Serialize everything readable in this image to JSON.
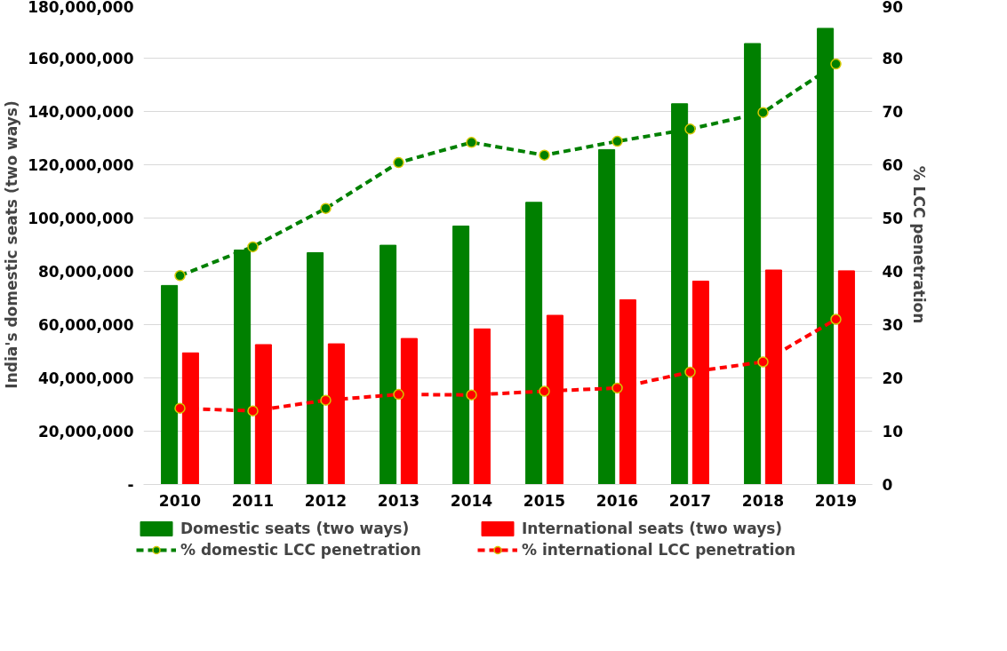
{
  "chart_data": {
    "type": "bar",
    "ylabel": "India's domestic seats (two ways)",
    "y2label": "% LCC penetration",
    "categories": [
      "2010",
      "2011",
      "2012",
      "2013",
      "2014",
      "2015",
      "2016",
      "2017",
      "2018",
      "2019"
    ],
    "series": [
      {
        "name": "Domestic seats (two ways)",
        "color": "#008000",
        "values": [
          74700000,
          88000000,
          87000000,
          89800000,
          97000000,
          105900000,
          125700000,
          142900000,
          165500000,
          171200000
        ]
      },
      {
        "name": "International seats (two ways)",
        "color": "#ff0000",
        "values": [
          49400000,
          52500000,
          52800000,
          54800000,
          58400000,
          63500000,
          69300000,
          76300000,
          80500000,
          80200000
        ]
      },
      {
        "name": "% domestic LCC penetration",
        "type": "line",
        "axis": "y2",
        "color": "#008000",
        "line_style": "dashed",
        "marker": "circle",
        "values": [
          39.2,
          44.6,
          51.8,
          60.4,
          64.2,
          61.8,
          64.4,
          66.7,
          69.8,
          78.9
        ]
      },
      {
        "name": "% international LCC penetration",
        "type": "line",
        "axis": "y2",
        "color": "#ff0000",
        "line_style": "dashed",
        "marker": "circle",
        "values": [
          14.3,
          13.8,
          15.8,
          16.9,
          16.8,
          17.5,
          18.1,
          21.1,
          23.0,
          31.0
        ]
      }
    ],
    "ylim": [
      0,
      180000000
    ],
    "yticks": [
      {
        "value": 0,
        "label": "-"
      },
      {
        "value": 20000000,
        "label": "20,000,000"
      },
      {
        "value": 40000000,
        "label": "40,000,000"
      },
      {
        "value": 60000000,
        "label": "60,000,000"
      },
      {
        "value": 80000000,
        "label": "80,000,000"
      },
      {
        "value": 100000000,
        "label": "100,000,000"
      },
      {
        "value": 120000000,
        "label": "120,000,000"
      },
      {
        "value": 140000000,
        "label": "140,000,000"
      },
      {
        "value": 160000000,
        "label": "160,000,000"
      },
      {
        "value": 180000000,
        "label": "180,000,000"
      }
    ],
    "y2lim": [
      0,
      90
    ],
    "y2ticks": [
      0,
      10,
      20,
      30,
      40,
      50,
      60,
      70,
      80,
      90
    ],
    "grid": "y",
    "legend": "bottom"
  }
}
